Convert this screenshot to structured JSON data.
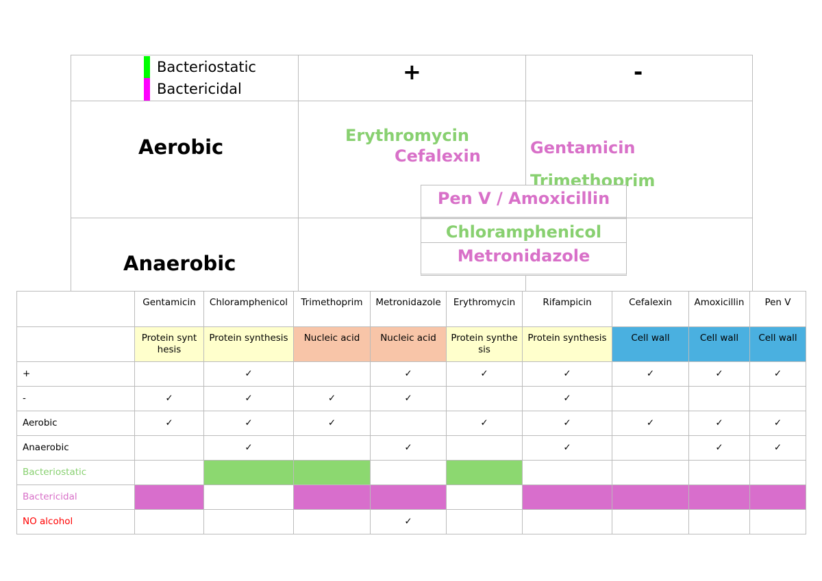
{
  "legend": {
    "items": [
      {
        "label": "Bacteriostatic",
        "color": "#00ff00"
      },
      {
        "label": "Bactericidal",
        "color": "#ff00ff"
      }
    ]
  },
  "grid": {
    "col_plus": "+",
    "col_minus": "-",
    "row_aerobic": "Aerobic",
    "row_anaerobic": "Anaerobic",
    "aerobic_plus": [
      "Erythromycin",
      "Cefalexin"
    ],
    "aerobic_minus": [
      "Gentamicin",
      "Trimethoprim"
    ],
    "overlay": [
      "Pen V / Amoxicillin",
      "Chloramphenicol",
      "Metronidazole"
    ]
  },
  "colors": {
    "bacteriostatic": "#8cd870",
    "bactericidal": "#d86ecc",
    "protein": "#ffffcc",
    "nucleic": "#f8c5a8",
    "cellwall": "#4ab0e0",
    "bacteriostatic_text": "#88d070",
    "bactericidal_text": "#d870c8",
    "no_alcohol_text": "#ff0000"
  },
  "table": {
    "drugs": [
      "Gentamicin",
      "Chloramphenicol",
      "Trimethoprim",
      "Metronidazole",
      "Erythromycin",
      "Rifampicin",
      "Cefalexin",
      "Amoxicillin",
      "Pen V"
    ],
    "mechanisms": [
      [
        "Protein synthesis",
        "protein"
      ],
      [
        "Protein synthesis",
        "protein"
      ],
      [
        "Nucleic acid",
        "nucleic"
      ],
      [
        "Nucleic acid",
        "nucleic"
      ],
      [
        "Protein synthesis",
        "protein"
      ],
      [
        "Protein synthesis",
        "protein"
      ],
      [
        "Cell wall",
        "cellwall"
      ],
      [
        "Cell wall",
        "cellwall"
      ],
      [
        "Cell wall",
        "cellwall"
      ]
    ],
    "check_mark": "✓",
    "check_rows": [
      {
        "label": "+",
        "checks": [
          0,
          1,
          0,
          1,
          1,
          1,
          1,
          1,
          1
        ]
      },
      {
        "label": "-",
        "checks": [
          1,
          1,
          1,
          1,
          0,
          1,
          0,
          0,
          0
        ]
      },
      {
        "label": "Aerobic",
        "checks": [
          1,
          1,
          1,
          0,
          1,
          1,
          1,
          1,
          1
        ]
      },
      {
        "label": "Anaerobic",
        "checks": [
          0,
          1,
          0,
          1,
          0,
          1,
          0,
          1,
          1
        ]
      }
    ],
    "bacteriostatic": {
      "label": "Bacteriostatic",
      "fill": [
        0,
        1,
        1,
        0,
        1,
        0,
        0,
        0,
        0
      ]
    },
    "bactericidal": {
      "label": "Bactericidal",
      "fill": [
        1,
        0,
        1,
        1,
        0,
        1,
        1,
        1,
        1
      ]
    },
    "no_alcohol": {
      "label": "NO alcohol",
      "checks": [
        0,
        0,
        0,
        1,
        0,
        0,
        0,
        0,
        0
      ]
    }
  }
}
